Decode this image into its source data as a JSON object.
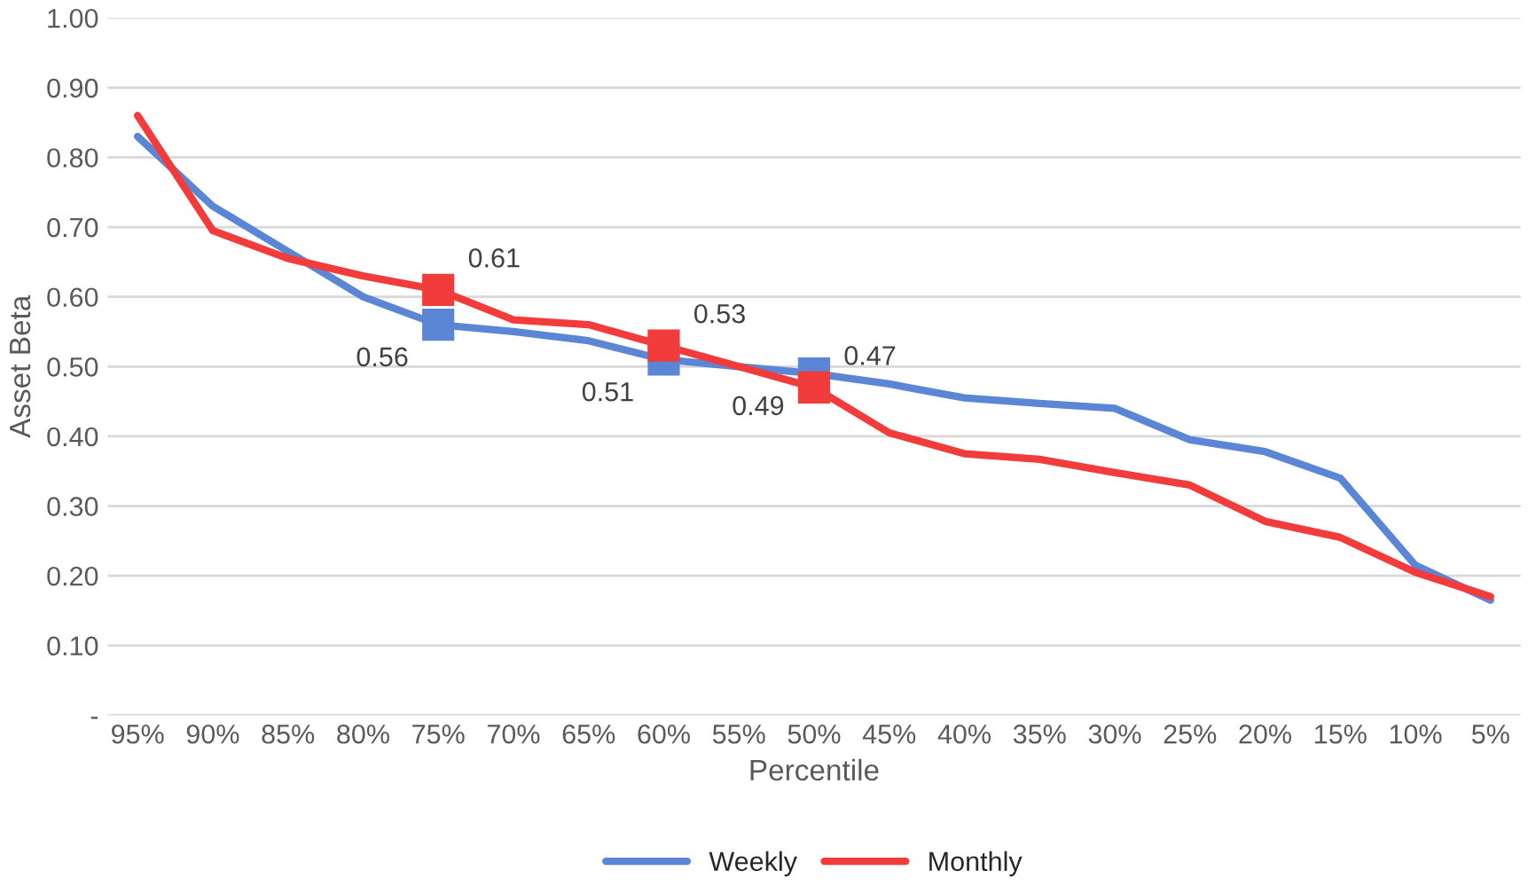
{
  "chart_data": {
    "type": "line",
    "xlabel": "Percentile",
    "ylabel": "Asset Beta",
    "categories": [
      "95%",
      "90%",
      "85%",
      "80%",
      "75%",
      "70%",
      "65%",
      "60%",
      "55%",
      "50%",
      "45%",
      "40%",
      "35%",
      "30%",
      "25%",
      "20%",
      "15%",
      "10%",
      "5%"
    ],
    "series": [
      {
        "name": "Weekly",
        "color": "#5b86d6",
        "values": [
          0.83,
          0.73,
          0.665,
          0.6,
          0.56,
          0.55,
          0.537,
          0.51,
          0.5,
          0.49,
          0.475,
          0.455,
          0.447,
          0.44,
          0.395,
          0.378,
          0.34,
          0.215,
          0.165
        ]
      },
      {
        "name": "Monthly",
        "color": "#f23b3b",
        "values": [
          0.86,
          0.695,
          0.655,
          0.63,
          0.61,
          0.567,
          0.56,
          0.53,
          0.5,
          0.47,
          0.405,
          0.375,
          0.367,
          0.348,
          0.33,
          0.278,
          0.255,
          0.205,
          0.17
        ]
      },
      {
        "type": "scatter",
        "marker": "square",
        "color": "#5b86d6",
        "values": [
          null,
          null,
          null,
          null,
          0.56,
          null,
          null,
          0.51,
          null,
          0.49,
          null,
          null,
          null,
          null,
          null,
          null,
          null,
          null,
          null
        ],
        "value_labels": [
          null,
          null,
          null,
          null,
          "0.56",
          null,
          null,
          "0.51",
          null,
          "0.49",
          null,
          null,
          null,
          null,
          null,
          null,
          null,
          null,
          null
        ]
      },
      {
        "type": "scatter",
        "marker": "square",
        "color": "#f23b3b",
        "values": [
          null,
          null,
          null,
          null,
          0.61,
          null,
          null,
          0.53,
          null,
          0.47,
          null,
          null,
          null,
          null,
          null,
          null,
          null,
          null,
          null
        ],
        "value_labels": [
          null,
          null,
          null,
          null,
          "0.61",
          null,
          null,
          "0.53",
          null,
          "0.47",
          null,
          null,
          null,
          null,
          null,
          null,
          null,
          null,
          null
        ]
      }
    ],
    "ylim": [
      0,
      1.0
    ],
    "yticks": [
      {
        "value": 0,
        "label": "-"
      },
      {
        "value": 0.1,
        "label": "0.10"
      },
      {
        "value": 0.2,
        "label": "0.20"
      },
      {
        "value": 0.3,
        "label": "0.30"
      },
      {
        "value": 0.4,
        "label": "0.40"
      },
      {
        "value": 0.5,
        "label": "0.50"
      },
      {
        "value": 0.6,
        "label": "0.60"
      },
      {
        "value": 0.7,
        "label": "0.70"
      },
      {
        "value": 0.8,
        "label": "0.80"
      },
      {
        "value": 0.9,
        "label": "0.90"
      },
      {
        "value": 1.0,
        "label": "1.00"
      }
    ],
    "grid": "y",
    "legend": "bottom",
    "line_style": "solid"
  }
}
